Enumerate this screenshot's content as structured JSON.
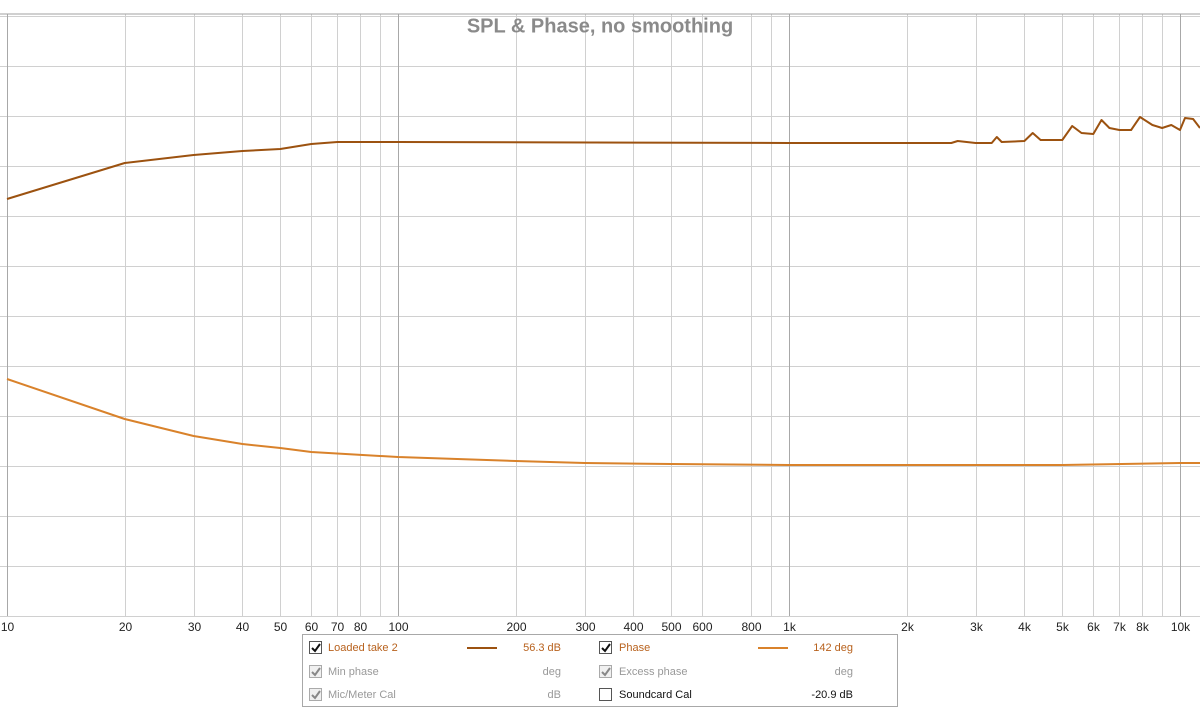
{
  "chart_data": {
    "type": "line",
    "title": "SPL & Phase, no smoothing",
    "xscale": "log",
    "grid": true,
    "xlim": [
      10,
      11250
    ],
    "ylim": [
      0,
      12
    ],
    "xticks": [
      10,
      20,
      30,
      40,
      50,
      60,
      70,
      80,
      100,
      200,
      300,
      400,
      500,
      600,
      800,
      {
        "value": 1000,
        "label": "1k"
      },
      {
        "value": 2000,
        "label": "2k"
      },
      {
        "value": 3000,
        "label": "3k"
      },
      {
        "value": 4000,
        "label": "4k"
      },
      {
        "value": 5000,
        "label": "5k"
      },
      {
        "value": 6000,
        "label": "6k"
      },
      {
        "value": 7000,
        "label": "7k"
      },
      {
        "value": 8000,
        "label": "8k"
      },
      {
        "value": 10000,
        "label": "10k"
      }
    ],
    "xminor": [
      90,
      900,
      9000
    ],
    "ygrid": [
      0,
      1,
      2,
      3,
      4,
      5,
      6,
      7,
      8,
      9,
      10,
      11,
      12
    ],
    "series": [
      {
        "name": "Loaded take 2",
        "color": "#9c5210",
        "readout": "56.3 dB",
        "checked": true,
        "x": [
          10,
          20,
          30,
          40,
          50,
          60,
          70,
          100,
          1000,
          2600,
          2700,
          3000,
          3300,
          3400,
          3500,
          4000,
          4200,
          4400,
          5000,
          5300,
          5600,
          6000,
          6300,
          6600,
          7000,
          7500,
          7900,
          8500,
          9000,
          9500,
          10000,
          10300,
          10800,
          11250
        ],
        "values": [
          8.34,
          9.06,
          9.22,
          9.3,
          9.34,
          9.44,
          9.48,
          9.48,
          9.46,
          9.46,
          9.5,
          9.46,
          9.46,
          9.58,
          9.48,
          9.5,
          9.66,
          9.52,
          9.52,
          9.8,
          9.66,
          9.64,
          9.92,
          9.76,
          9.72,
          9.72,
          9.98,
          9.82,
          9.76,
          9.82,
          9.72,
          9.96,
          9.94,
          9.76
        ]
      },
      {
        "name": "Phase",
        "color": "#d9822b",
        "readout": "142 deg",
        "checked": true,
        "x": [
          10,
          20,
          30,
          40,
          50,
          60,
          100,
          200,
          300,
          500,
          1000,
          5000,
          10000,
          11250
        ],
        "values": [
          4.74,
          3.94,
          3.6,
          3.44,
          3.36,
          3.28,
          3.18,
          3.1,
          3.06,
          3.04,
          3.02,
          3.02,
          3.06,
          3.06
        ]
      }
    ],
    "extra_traces": [
      {
        "name": "Min phase",
        "readout": "deg",
        "checked": true,
        "enabled": false
      },
      {
        "name": "Excess phase",
        "readout": "deg",
        "checked": true,
        "enabled": false
      },
      {
        "name": "Mic/Meter Cal",
        "readout": "dB",
        "checked": true,
        "enabled": false
      },
      {
        "name": "Soundcard Cal",
        "readout": "-20.9 dB",
        "checked": false,
        "enabled": true
      }
    ]
  }
}
